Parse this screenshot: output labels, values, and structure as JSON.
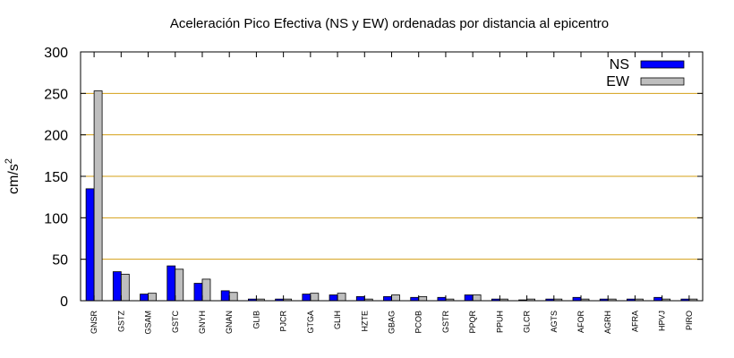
{
  "chart_data": {
    "type": "bar",
    "title": "Aceleración Pico Efectiva (NS y EW) ordenadas por distancia al epicentro",
    "xlabel": "",
    "ylabel": "cm/s",
    "ylabel_superscript": "2",
    "ylim": [
      0,
      300
    ],
    "yticks": [
      0,
      50,
      100,
      150,
      200,
      250,
      300
    ],
    "ytick_labels": [
      "0",
      "50",
      "100",
      "150",
      "200",
      "250",
      "300"
    ],
    "grid": "horizontal",
    "legend_position": "top-right",
    "categories": [
      "GNSR",
      "GSTZ",
      "GSAM",
      "GSTC",
      "GNYH",
      "GNAN",
      "GLIB",
      "PJCR",
      "GTGA",
      "GLIH",
      "HZTE",
      "GBAG",
      "PCOB",
      "GSTR",
      "PPQR",
      "PPUH",
      "GLCR",
      "AGTS",
      "AFOR",
      "AGRH",
      "AFRA",
      "HPVJ",
      "PIRO"
    ],
    "series": [
      {
        "name": "NS",
        "color": "#0000ff",
        "values": [
          135,
          35,
          8,
          42,
          21,
          12,
          2,
          2,
          8,
          7,
          5,
          5,
          4,
          4,
          7,
          2,
          1,
          2,
          4,
          2,
          2,
          4,
          2
        ]
      },
      {
        "name": "EW",
        "color": "#bebebe",
        "values": [
          253,
          32,
          9,
          38,
          26,
          10,
          2,
          2,
          9,
          9,
          2,
          7,
          5,
          2,
          7,
          2,
          2,
          2,
          2,
          2,
          2,
          2,
          2
        ]
      }
    ],
    "colors": {
      "gridline": "#d4a017",
      "axis": "#000000",
      "bar_outline": "#000000"
    }
  }
}
